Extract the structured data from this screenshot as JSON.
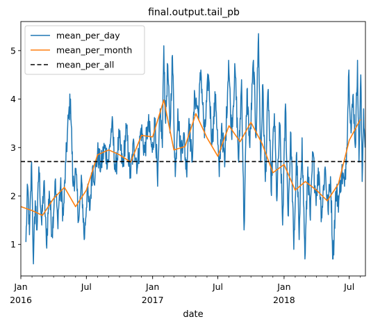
{
  "chart_data": {
    "type": "line",
    "title": "final.output.tail_pb",
    "xlabel": "date",
    "ylabel": "",
    "xlim": [
      "2016-01-01",
      "2018-08-15"
    ],
    "ylim": [
      0.35,
      5.6
    ],
    "grid": false,
    "legend_position": "top-left",
    "y_ticks": [
      1,
      2,
      3,
      4,
      5
    ],
    "y_tick_labels": [
      "1",
      "2",
      "3",
      "4",
      "5"
    ],
    "x_ticks": [
      {
        "date": "2016-01-01",
        "label": "Jan",
        "sublabel": "2016"
      },
      {
        "date": "2016-07-01",
        "label": "Jul",
        "sublabel": ""
      },
      {
        "date": "2017-01-01",
        "label": "Jan",
        "sublabel": "2017"
      },
      {
        "date": "2017-07-01",
        "label": "Jul",
        "sublabel": ""
      },
      {
        "date": "2018-01-01",
        "label": "Jan",
        "sublabel": "2018"
      },
      {
        "date": "2018-07-01",
        "label": "Jul",
        "sublabel": ""
      }
    ],
    "series": [
      {
        "name": "mean_per_day",
        "color": "#1f77b4",
        "style": "solid",
        "anchors": [
          [
            "2016-01-15",
            1.05
          ],
          [
            "2016-01-20",
            2.2
          ],
          [
            "2016-01-25",
            1.2
          ],
          [
            "2016-01-31",
            2.7
          ],
          [
            "2016-02-05",
            0.6
          ],
          [
            "2016-02-10",
            1.9
          ],
          [
            "2016-02-15",
            1.3
          ],
          [
            "2016-02-20",
            2.6
          ],
          [
            "2016-02-28",
            1.4
          ],
          [
            "2016-03-05",
            2.3
          ],
          [
            "2016-03-12",
            1.0
          ],
          [
            "2016-03-20",
            2.1
          ],
          [
            "2016-03-28",
            1.2
          ],
          [
            "2016-04-05",
            2.3
          ],
          [
            "2016-04-12",
            1.5
          ],
          [
            "2016-04-20",
            2.2
          ],
          [
            "2016-04-28",
            1.6
          ],
          [
            "2016-05-05",
            2.7
          ],
          [
            "2016-05-12",
            3.6
          ],
          [
            "2016-05-18",
            4.0
          ],
          [
            "2016-05-25",
            2.2
          ],
          [
            "2016-06-01",
            2.5
          ],
          [
            "2016-06-10",
            1.5
          ],
          [
            "2016-06-18",
            2.3
          ],
          [
            "2016-06-25",
            1.1
          ],
          [
            "2016-07-03",
            2.1
          ],
          [
            "2016-07-10",
            1.7
          ],
          [
            "2016-07-18",
            2.6
          ],
          [
            "2016-07-25",
            2.4
          ],
          [
            "2016-08-01",
            2.9
          ],
          [
            "2016-08-10",
            2.6
          ],
          [
            "2016-08-20",
            3.0
          ],
          [
            "2016-08-31",
            2.7
          ],
          [
            "2016-09-10",
            3.5
          ],
          [
            "2016-09-20",
            2.5
          ],
          [
            "2016-09-30",
            3.2
          ],
          [
            "2016-10-10",
            2.6
          ],
          [
            "2016-10-20",
            3.4
          ],
          [
            "2016-10-31",
            2.4
          ],
          [
            "2016-11-10",
            3.1
          ],
          [
            "2016-11-20",
            2.6
          ],
          [
            "2016-11-30",
            3.4
          ],
          [
            "2016-12-10",
            2.9
          ],
          [
            "2016-12-20",
            3.5
          ],
          [
            "2016-12-31",
            2.9
          ],
          [
            "2017-01-08",
            3.6
          ],
          [
            "2017-01-15",
            2.2
          ],
          [
            "2017-01-22",
            3.8
          ],
          [
            "2017-01-28",
            3.0
          ],
          [
            "2017-02-01",
            5.1
          ],
          [
            "2017-02-06",
            3.5
          ],
          [
            "2017-02-12",
            4.7
          ],
          [
            "2017-02-18",
            3.3
          ],
          [
            "2017-02-25",
            4.9
          ],
          [
            "2017-03-05",
            2.4
          ],
          [
            "2017-03-12",
            3.8
          ],
          [
            "2017-03-20",
            2.9
          ],
          [
            "2017-03-28",
            3.3
          ],
          [
            "2017-04-05",
            2.5
          ],
          [
            "2017-04-12",
            3.6
          ],
          [
            "2017-04-20",
            2.7
          ],
          [
            "2017-04-28",
            4.1
          ],
          [
            "2017-05-08",
            3.7
          ],
          [
            "2017-05-15",
            4.6
          ],
          [
            "2017-05-25",
            3.2
          ],
          [
            "2017-06-05",
            4.5
          ],
          [
            "2017-06-15",
            3.1
          ],
          [
            "2017-06-25",
            4.1
          ],
          [
            "2017-07-05",
            2.4
          ],
          [
            "2017-07-12",
            3.5
          ],
          [
            "2017-07-20",
            2.6
          ],
          [
            "2017-07-31",
            4.8
          ],
          [
            "2017-08-08",
            3.3
          ],
          [
            "2017-08-18",
            4.6
          ],
          [
            "2017-08-28",
            2.7
          ],
          [
            "2017-09-05",
            4.4
          ],
          [
            "2017-09-12",
            1.3
          ],
          [
            "2017-09-20",
            4.2
          ],
          [
            "2017-09-28",
            3.0
          ],
          [
            "2017-10-08",
            4.8
          ],
          [
            "2017-10-15",
            3.2
          ],
          [
            "2017-10-22",
            5.35
          ],
          [
            "2017-10-28",
            2.7
          ],
          [
            "2017-11-03",
            4.3
          ],
          [
            "2017-11-10",
            2.3
          ],
          [
            "2017-11-18",
            4.2
          ],
          [
            "2017-11-26",
            2.1
          ],
          [
            "2017-12-05",
            3.7
          ],
          [
            "2017-12-12",
            1.9
          ],
          [
            "2017-12-20",
            3.5
          ],
          [
            "2017-12-28",
            1.4
          ],
          [
            "2018-01-05",
            3.9
          ],
          [
            "2018-01-12",
            1.6
          ],
          [
            "2018-01-20",
            3.3
          ],
          [
            "2018-01-28",
            0.9
          ],
          [
            "2018-02-05",
            2.9
          ],
          [
            "2018-02-12",
            1.1
          ],
          [
            "2018-02-20",
            3.2
          ],
          [
            "2018-02-28",
            0.7
          ],
          [
            "2018-03-08",
            2.6
          ],
          [
            "2018-03-15",
            1.5
          ],
          [
            "2018-03-22",
            2.9
          ],
          [
            "2018-03-30",
            2.0
          ],
          [
            "2018-04-08",
            2.5
          ],
          [
            "2018-04-15",
            1.6
          ],
          [
            "2018-04-25",
            2.6
          ],
          [
            "2018-05-03",
            1.7
          ],
          [
            "2018-05-10",
            2.4
          ],
          [
            "2018-05-17",
            0.7
          ],
          [
            "2018-05-25",
            2.1
          ],
          [
            "2018-06-02",
            1.9
          ],
          [
            "2018-06-10",
            2.5
          ],
          [
            "2018-06-18",
            2.2
          ],
          [
            "2018-06-24",
            3.0
          ],
          [
            "2018-06-30",
            4.6
          ],
          [
            "2018-07-06",
            3.3
          ],
          [
            "2018-07-12",
            4.1
          ],
          [
            "2018-07-18",
            3.0
          ],
          [
            "2018-07-24",
            4.8
          ],
          [
            "2018-07-28",
            2.7
          ],
          [
            "2018-08-02",
            4.5
          ],
          [
            "2018-08-06",
            2.3
          ],
          [
            "2018-08-10",
            3.8
          ],
          [
            "2018-08-14",
            3.0
          ]
        ]
      },
      {
        "name": "mean_per_month",
        "color": "#ff7f0e",
        "style": "solid",
        "points": [
          [
            "2016-01-01",
            1.78
          ],
          [
            "2016-02-01",
            1.7
          ],
          [
            "2016-03-01",
            1.6
          ],
          [
            "2016-04-01",
            1.95
          ],
          [
            "2016-05-01",
            2.18
          ],
          [
            "2016-06-01",
            1.78
          ],
          [
            "2016-07-01",
            2.12
          ],
          [
            "2016-08-01",
            2.85
          ],
          [
            "2016-09-01",
            2.95
          ],
          [
            "2016-10-01",
            2.85
          ],
          [
            "2016-11-01",
            2.7
          ],
          [
            "2016-12-01",
            3.25
          ],
          [
            "2017-01-01",
            3.22
          ],
          [
            "2017-02-01",
            3.98
          ],
          [
            "2017-03-01",
            2.95
          ],
          [
            "2017-04-01",
            3.02
          ],
          [
            "2017-05-01",
            3.7
          ],
          [
            "2017-06-01",
            3.2
          ],
          [
            "2017-07-01",
            2.82
          ],
          [
            "2017-08-01",
            3.45
          ],
          [
            "2017-09-01",
            3.12
          ],
          [
            "2017-10-01",
            3.52
          ],
          [
            "2017-11-01",
            3.08
          ],
          [
            "2017-12-01",
            2.48
          ],
          [
            "2018-01-01",
            2.65
          ],
          [
            "2018-02-01",
            2.12
          ],
          [
            "2018-03-01",
            2.3
          ],
          [
            "2018-04-01",
            2.12
          ],
          [
            "2018-05-01",
            1.9
          ],
          [
            "2018-06-01",
            2.25
          ],
          [
            "2018-07-01",
            3.15
          ],
          [
            "2018-08-01",
            3.58
          ]
        ]
      },
      {
        "name": "mean_per_all",
        "color": "#000000",
        "style": "dashed",
        "value": 2.71
      }
    ]
  }
}
